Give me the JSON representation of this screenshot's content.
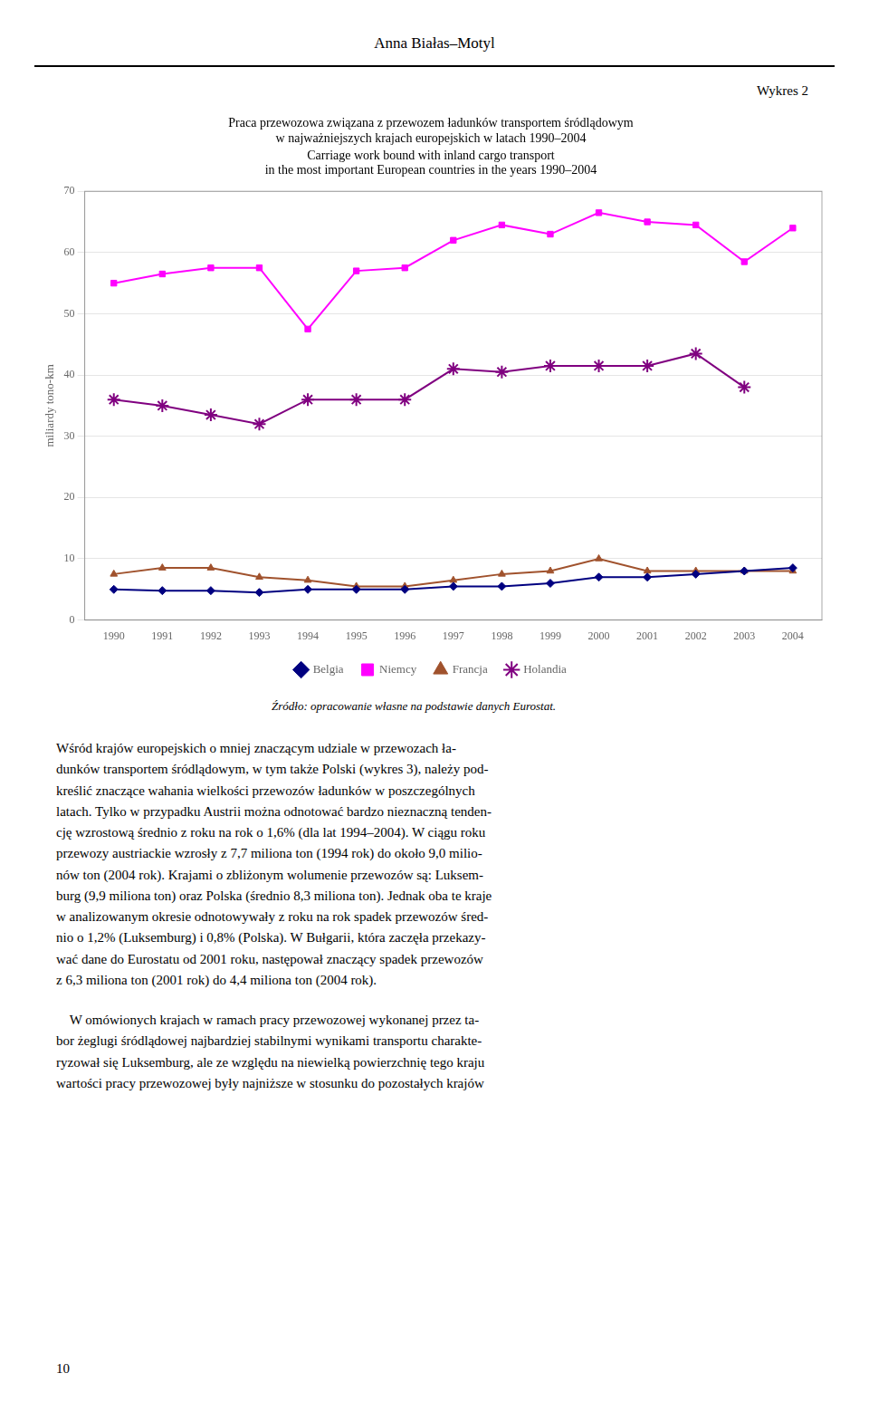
{
  "chart_data": {
    "type": "line",
    "title": "Praca przewozowa związana z przewozem ładunków transportem śródlądowym\nw najważniejszych krajach europejskich w latach 1990–2004",
    "subtitle": "Carriage work bound with inland cargo transport\nin the most important European countries in the years 1990–2004",
    "y_label": "miliardy tono-km",
    "x": [
      1990,
      1991,
      1992,
      1993,
      1994,
      1995,
      1996,
      1997,
      1998,
      1999,
      2000,
      2001,
      2002,
      2003,
      2004
    ],
    "series": [
      {
        "name": "Belgia",
        "color": "#000080",
        "marker": "diamond",
        "values": [
          5.0,
          4.8,
          4.8,
          4.5,
          5.0,
          5.0,
          5.0,
          5.5,
          5.5,
          6.0,
          7.0,
          7.0,
          7.5,
          8.0,
          8.5
        ]
      },
      {
        "name": "Niemcy",
        "color": "#FF00FF",
        "marker": "square",
        "values": [
          55.0,
          56.5,
          57.5,
          57.5,
          47.5,
          57.0,
          57.5,
          62.0,
          64.5,
          63.0,
          66.5,
          65.0,
          64.5,
          58.5,
          64.0
        ]
      },
      {
        "name": "Francja",
        "color": "#A0522D",
        "marker": "triangle",
        "values": [
          7.5,
          8.5,
          8.5,
          7.0,
          6.5,
          5.5,
          5.5,
          6.5,
          7.5,
          8.0,
          10.0,
          8.0,
          8.0,
          8.0,
          8.0
        ]
      },
      {
        "name": "Holandia",
        "color": "#800080",
        "marker": "star",
        "values": [
          36.0,
          35.0,
          33.5,
          32.0,
          36.0,
          36.0,
          36.0,
          41.0,
          40.5,
          41.5,
          41.5,
          41.5,
          43.5,
          38.0,
          null
        ]
      }
    ],
    "xlim": [
      1989.4,
      2004.6
    ],
    "xticks": [
      1990,
      1991,
      1992,
      1993,
      1994,
      1995,
      1996,
      1997,
      1998,
      1999,
      2000,
      2001,
      2002,
      2003,
      2004
    ],
    "ylim": [
      0,
      70
    ],
    "yticks": [
      0,
      10,
      20,
      30,
      40,
      50,
      60,
      70
    ],
    "grid": "y",
    "legend": "bottom",
    "annotations": [
      "Anna Białas–Motyl",
      "Wykres 2",
      "Źródło: opracowanie własne na podstawie danych Eurostat.",
      "Wśród krajów europejskich o mniej znaczącym udziale w przewozach ła-\ndunków transportem śródlądowym, w tym także Polski (wykres 3), należy pod-\nkreślić znaczące wahania wielkości przewozów ładunków w poszczególnych\nlatach. Tylko w przypadku Austrii można odnotować bardzo nieznaczną tenden-\ncję wzrostową średnio z roku na rok o 1,6% (dla lat 1994–2004). W ciągu roku\nprzewozy austriackie wzrosły z 7,7 miliona ton (1994 rok) do około 9,0 milio-\nnów ton (2004 rok). Krajami o zbliżonym wolumenie przewozów są: Luksem-\nburg (9,9 miliona ton) oraz Polska (średnio 8,3 miliona ton). Jednak oba te kraje\nw analizowanym okresie odnotowywały z roku na rok spadek przewozów śred-\nnio o 1,2% (Luksemburg) i 0,8% (Polska). W Bułgarii, która zaczęła przekazy-\nwać dane do Eurostatu od 2001 roku, następował znaczący spadek przewozów\nz 6,3 miliona ton (2001 rok) do 4,4 miliona ton (2004 rok).",
      "    W omówionych krajach w ramach pracy przewozowej wykonanej przez ta-\nbor żeglugi śródlądowej najbardziej stabilnymi wynikami transportu charakte-\nryzował się Luksemburg, ale ze względu na niewielką powierzchnię tego kraju\nwartości pracy przewozowej były najniższe w stosunku do pozostałych krajów",
      "10"
    ]
  }
}
